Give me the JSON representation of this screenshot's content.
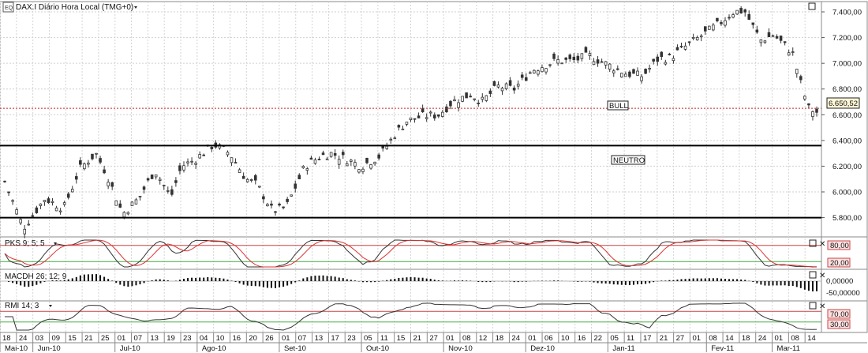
{
  "header": {
    "symbol_icon": "chart-symbol-icon",
    "title": "DAX.I Diário Hora Local (TMG+0)"
  },
  "panels": {
    "main": {
      "price_axis": [
        "7.400,00",
        "7.200,00",
        "7.000,00",
        "6.800,00",
        "6.600,00",
        "6.400,00",
        "6.200,00",
        "6.000,00",
        "5.800,00"
      ],
      "last_price": "6.650,52",
      "annotations": [
        "BULL",
        "NEUTRO"
      ],
      "support_levels": [
        6650.52,
        6360,
        5800
      ]
    },
    "pks": {
      "label": "PKS 9; 5; 5",
      "levels": [
        "80,00",
        "20,00"
      ]
    },
    "macdh": {
      "label": "MACDH 26; 12; 9",
      "levels": [
        "0,00000",
        "-50,00000"
      ]
    },
    "rmi": {
      "label": "RMI 14; 3",
      "levels": [
        "70,00",
        "30,00"
      ]
    }
  },
  "date_axis": {
    "days": [
      "18",
      "24",
      "03",
      "09",
      "15",
      "21",
      "25",
      "01",
      "07",
      "13",
      "19",
      "23",
      "04",
      "10",
      "16",
      "20",
      "26",
      "01",
      "07",
      "13",
      "17",
      "23",
      "05",
      "11",
      "15",
      "21",
      "27",
      "01",
      "08",
      "12",
      "18",
      "24",
      "01",
      "06",
      "10",
      "16",
      "22",
      "05",
      "11",
      "17",
      "21",
      "27",
      "01",
      "08",
      "14",
      "18",
      "24",
      "01",
      "08",
      "14"
    ],
    "months": [
      "Mai-10",
      "Jun-10",
      "Jul-10",
      "Ago-10",
      "Set-10",
      "Out-10",
      "Nov-10",
      "Dez-10",
      "Jan-11",
      "Fev-11",
      "Mar-11"
    ]
  },
  "chart_data": {
    "type": "candlestick",
    "title": "DAX.I Diário Hora Local (TMG+0)",
    "ylim": [
      5650,
      7480
    ],
    "x_range": [
      "2010-05-18",
      "2011-03-17"
    ],
    "price_keypoints": [
      [
        "2010-05-18",
        6080
      ],
      [
        "2010-05-25",
        5720
      ],
      [
        "2010-06-02",
        5950
      ],
      [
        "2010-06-09",
        5870
      ],
      [
        "2010-06-15",
        6180
      ],
      [
        "2010-06-21",
        6300
      ],
      [
        "2010-06-25",
        6140
      ],
      [
        "2010-07-01",
        5830
      ],
      [
        "2010-07-07",
        5950
      ],
      [
        "2010-07-13",
        6170
      ],
      [
        "2010-07-19",
        5960
      ],
      [
        "2010-07-23",
        6200
      ],
      [
        "2010-07-28",
        6250
      ],
      [
        "2010-08-04",
        6370
      ],
      [
        "2010-08-10",
        6300
      ],
      [
        "2010-08-16",
        6100
      ],
      [
        "2010-08-20",
        6060
      ],
      [
        "2010-08-26",
        5850
      ],
      [
        "2010-08-31",
        5880
      ],
      [
        "2010-09-07",
        6200
      ],
      [
        "2010-09-13",
        6280
      ],
      [
        "2010-09-17",
        6300
      ],
      [
        "2010-09-23",
        6250
      ],
      [
        "2010-09-28",
        6200
      ],
      [
        "2010-10-05",
        6280
      ],
      [
        "2010-10-11",
        6460
      ],
      [
        "2010-10-15",
        6550
      ],
      [
        "2010-10-21",
        6590
      ],
      [
        "2010-10-27",
        6600
      ],
      [
        "2010-11-01",
        6700
      ],
      [
        "2010-11-08",
        6760
      ],
      [
        "2010-11-12",
        6700
      ],
      [
        "2010-11-18",
        6820
      ],
      [
        "2010-11-24",
        6800
      ],
      [
        "2010-12-01",
        6950
      ],
      [
        "2010-12-06",
        6990
      ],
      [
        "2010-12-10",
        7020
      ],
      [
        "2010-12-16",
        7020
      ],
      [
        "2010-12-22",
        7060
      ],
      [
        "2011-01-05",
        6920
      ],
      [
        "2011-01-11",
        6900
      ],
      [
        "2011-01-17",
        7040
      ],
      [
        "2011-01-21",
        7040
      ],
      [
        "2011-01-27",
        7130
      ],
      [
        "2011-02-01",
        7200
      ],
      [
        "2011-02-08",
        7300
      ],
      [
        "2011-02-14",
        7400
      ],
      [
        "2011-02-18",
        7410
      ],
      [
        "2011-02-24",
        7180
      ],
      [
        "2011-03-01",
        7220
      ],
      [
        "2011-03-08",
        7080
      ],
      [
        "2011-03-11",
        6850
      ],
      [
        "2011-03-14",
        6650
      ],
      [
        "2011-03-17",
        6620
      ]
    ],
    "last_price": 6650.52,
    "horizontal_levels": [
      {
        "value": 6650.52,
        "style": "dotted",
        "color": "#cc2222"
      },
      {
        "value": 6360,
        "style": "solid",
        "color": "#000000"
      },
      {
        "value": 5800,
        "style": "solid",
        "color": "#000000"
      }
    ],
    "zone_labels": [
      {
        "text": "BULL",
        "y": 6630
      },
      {
        "text": "NEUTRO",
        "y": 6200
      }
    ],
    "indicators": [
      {
        "name": "PKS 9; 5; 5",
        "levels": [
          80,
          20
        ]
      },
      {
        "name": "MACDH 26; 12; 9",
        "levels": [
          0,
          -50
        ]
      },
      {
        "name": "RMI 14; 3",
        "levels": [
          70,
          30
        ]
      }
    ],
    "up_color": "#333333",
    "down_color": "#333333",
    "grid": true
  }
}
